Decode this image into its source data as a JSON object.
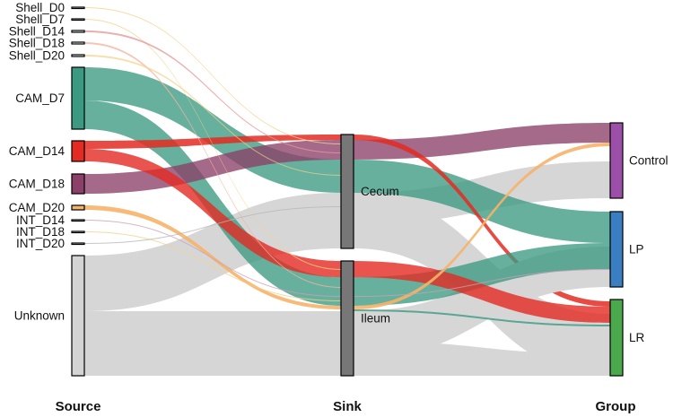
{
  "axis_labels": {
    "source": "Source",
    "sink": "Sink",
    "group": "Group"
  },
  "source_nodes": [
    {
      "id": "shell_d0",
      "label": "Shell_D0",
      "color": "#ffffff"
    },
    {
      "id": "shell_d7",
      "label": "Shell_D7",
      "color": "#ffffff"
    },
    {
      "id": "shell_d14",
      "label": "Shell_D14",
      "color": "#ffffff"
    },
    {
      "id": "shell_d18",
      "label": "Shell_D18",
      "color": "#ffffff"
    },
    {
      "id": "shell_d20",
      "label": "Shell_D20",
      "color": "#ffffff"
    },
    {
      "id": "cam_d7",
      "label": "CAM_D7",
      "color": "#3b9a81"
    },
    {
      "id": "cam_d14",
      "label": "CAM_D14",
      "color": "#e32b22"
    },
    {
      "id": "cam_d18",
      "label": "CAM_D18",
      "color": "#8c3f68"
    },
    {
      "id": "cam_d20",
      "label": "CAM_D20",
      "color": "#f6b36a"
    },
    {
      "id": "int_d14",
      "label": "INT_D14",
      "color": "#ffffff"
    },
    {
      "id": "int_d18",
      "label": "INT_D18",
      "color": "#ffffff"
    },
    {
      "id": "int_d20",
      "label": "INT_D20",
      "color": "#ffffff"
    },
    {
      "id": "unknown",
      "label": "Unknown",
      "color": "#d4d4d4"
    }
  ],
  "sink_nodes": [
    {
      "id": "cecum",
      "label": "Cecum",
      "color": "#777777"
    },
    {
      "id": "ileum",
      "label": "Ileum",
      "color": "#777777"
    }
  ],
  "group_nodes": [
    {
      "id": "control",
      "label": "Control",
      "color": "#9c4fa8"
    },
    {
      "id": "lp",
      "label": "LP",
      "color": "#3a7fc1"
    },
    {
      "id": "lr",
      "label": "LR",
      "color": "#4aa94d"
    }
  ],
  "flows": [
    {
      "source": "unknown",
      "target": "cecum",
      "value": 8
    },
    {
      "source": "unknown",
      "target": "ileum",
      "value": 9
    },
    {
      "source": "cam_d7",
      "target": "cecum",
      "value": 4
    },
    {
      "source": "cam_d7",
      "target": "ileum",
      "value": 5
    },
    {
      "source": "cam_d14",
      "target": "cecum",
      "value": 1
    },
    {
      "source": "cam_d14",
      "target": "ileum",
      "value": 1.8
    },
    {
      "source": "cam_d18",
      "target": "cecum",
      "value": 2.5
    },
    {
      "source": "cam_d20",
      "target": "ileum",
      "value": 0.3
    },
    {
      "source": "shell_d0",
      "target": "cecum",
      "value": 0.05
    },
    {
      "source": "shell_d7",
      "target": "ileum",
      "value": 0.05
    },
    {
      "source": "shell_d14",
      "target": "cecum",
      "value": 0.05
    },
    {
      "source": "int_d14",
      "target": "ileum",
      "value": 0.05
    },
    {
      "source": "cecum",
      "target": "control",
      "value": 4.5
    },
    {
      "source": "cecum",
      "target": "lp",
      "value": 4.5
    },
    {
      "source": "cecum",
      "target": "lr",
      "value": 3.5
    },
    {
      "source": "ileum",
      "target": "control",
      "value": 2.5
    },
    {
      "source": "ileum",
      "target": "lp",
      "value": 4.5
    },
    {
      "source": "ileum",
      "target": "lr",
      "value": 7.5
    }
  ]
}
